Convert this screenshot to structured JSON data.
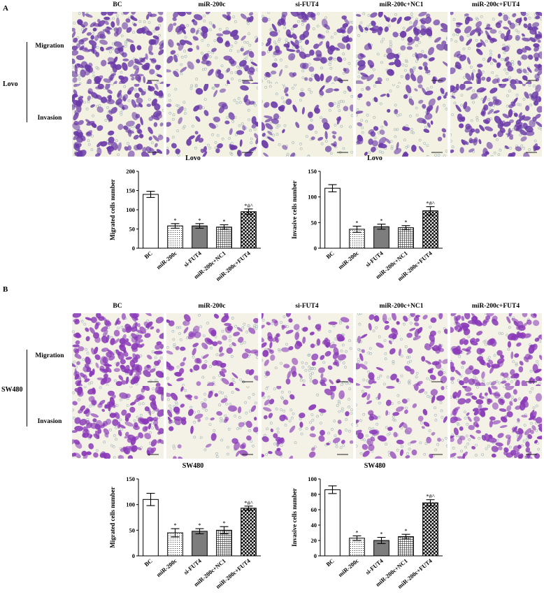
{
  "figure": {
    "columns": [
      "BC",
      "miR-200c",
      "si-FUT4",
      "miR-200c+NC1",
      "miR-200c+FUT4"
    ],
    "rows": [
      "Migration",
      "Invasion"
    ],
    "panels": [
      {
        "letter": "A",
        "cell_line": "Lovo",
        "stain_colors": {
          "cell": "#6a3aa8",
          "background": "#f3f2e2"
        }
      },
      {
        "letter": "B",
        "cell_line": "SW480",
        "stain_colors": {
          "cell": "#8a3ab8",
          "background": "#f4f2e6"
        }
      }
    ]
  },
  "chart_data": [
    {
      "type": "bar",
      "title": "Lovo",
      "ylabel": "Migrated cells number",
      "xlabel": "",
      "categories": [
        "BC",
        "miR-200c",
        "si-FUT4",
        "miR-200c+NC1",
        "miR-200c+FUT4"
      ],
      "values": [
        140,
        58,
        58,
        55,
        95
      ],
      "errors": [
        8,
        6,
        6,
        6,
        7
      ],
      "annotations": [
        "",
        "*",
        "*",
        "*",
        "*#^"
      ],
      "ylim": [
        0,
        200
      ],
      "yticks": [
        0,
        50,
        100,
        150,
        200
      ],
      "patterns": [
        "white",
        "dots",
        "gray-dots",
        "grid",
        "check"
      ]
    },
    {
      "type": "bar",
      "title": "Lovo",
      "ylabel": "Invasive cells number",
      "xlabel": "",
      "categories": [
        "BC",
        "miR-200c",
        "si-FUT4",
        "miR-200c+NC1",
        "miR-200c+FUT4"
      ],
      "values": [
        117,
        37,
        42,
        40,
        73
      ],
      "errors": [
        7,
        6,
        5,
        4,
        8
      ],
      "annotations": [
        "",
        "*",
        "*",
        "*",
        "*#^"
      ],
      "ylim": [
        0,
        150
      ],
      "yticks": [
        0,
        50,
        100,
        150
      ],
      "patterns": [
        "white",
        "dots",
        "gray-dots",
        "grid",
        "check"
      ]
    },
    {
      "type": "bar",
      "title": "SW480",
      "ylabel": "Migrated cells number",
      "xlabel": "",
      "categories": [
        "BC",
        "miR-200c",
        "si-FUT4",
        "miR-200c+NC1",
        "miR-200c+FUT4"
      ],
      "values": [
        110,
        45,
        48,
        50,
        93
      ],
      "errors": [
        12,
        8,
        5,
        7,
        4
      ],
      "annotations": [
        "",
        "*",
        "*",
        "*",
        "*#^"
      ],
      "ylim": [
        0,
        150
      ],
      "yticks": [
        0,
        50,
        100,
        150
      ],
      "patterns": [
        "white",
        "dots",
        "gray-dots",
        "grid",
        "check"
      ]
    },
    {
      "type": "bar",
      "title": "SW480",
      "ylabel": "Invasive cells number",
      "xlabel": "",
      "categories": [
        "BC",
        "miR-200c",
        "si-FUT4",
        "miR-200c+NC1",
        "miR-200c+FUT4"
      ],
      "values": [
        86,
        23,
        20,
        25,
        69
      ],
      "errors": [
        5,
        3,
        4,
        3,
        4
      ],
      "annotations": [
        "",
        "*",
        "*",
        "*",
        "*#^"
      ],
      "ylim": [
        0,
        100
      ],
      "yticks": [
        0,
        20,
        40,
        60,
        80,
        100
      ],
      "patterns": [
        "white",
        "dots",
        "gray-dots",
        "grid",
        "check"
      ]
    }
  ]
}
